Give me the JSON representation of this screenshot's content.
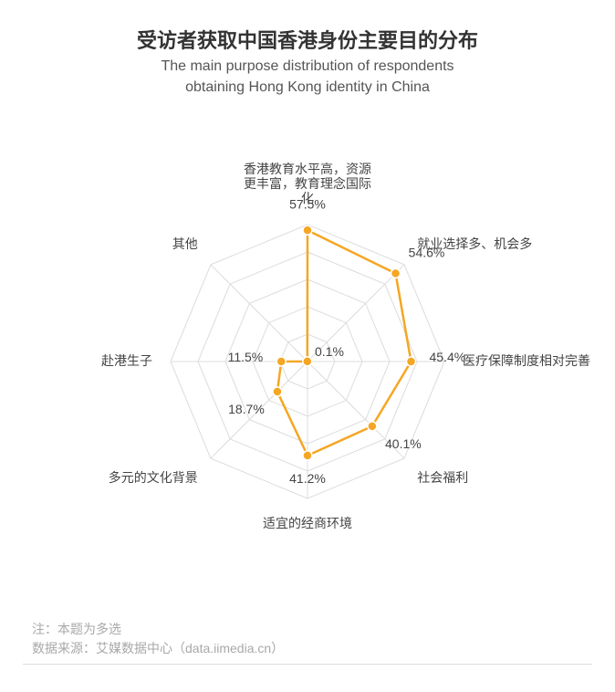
{
  "title_cn": "受访者获取中国香港身份主要目的分布",
  "title_en_line1": "The main purpose distribution of respondents",
  "title_en_line2": "obtaining Hong Kong identity in China",
  "note": "注：本题为多选",
  "source": "数据来源：艾媒数据中心（data.iimedia.cn）",
  "chart": {
    "type": "radar",
    "max_value": 60,
    "rings": 5,
    "line_color": "#f5a623",
    "line_width": 2.5,
    "marker_color": "#f5a623",
    "marker_stroke": "#ffffff",
    "marker_radius": 5,
    "grid_color": "#dcdcdc",
    "grid_width": 1,
    "background": "#ffffff",
    "label_color": "#444444",
    "label_fontsize": 14,
    "title_fontsize": 22,
    "subtitle_fontsize": 16,
    "axes": [
      {
        "label_lines": [
          "香港教育水平高，资源",
          "更丰富，教育理念国际",
          "化"
        ],
        "value": 57.5
      },
      {
        "label_lines": [
          "就业选择多、机会多"
        ],
        "value": 54.6
      },
      {
        "label_lines": [
          "医疗保障制度相对完善"
        ],
        "value": 45.4
      },
      {
        "label_lines": [
          "社会福利"
        ],
        "value": 40.1
      },
      {
        "label_lines": [
          "适宜的经商环境"
        ],
        "value": 41.2
      },
      {
        "label_lines": [
          "多元的文化背景"
        ],
        "value": 18.7
      },
      {
        "label_lines": [
          "赴港生子"
        ],
        "value": 11.5
      },
      {
        "label_lines": [
          "其他"
        ],
        "value": 0.1
      }
    ]
  }
}
